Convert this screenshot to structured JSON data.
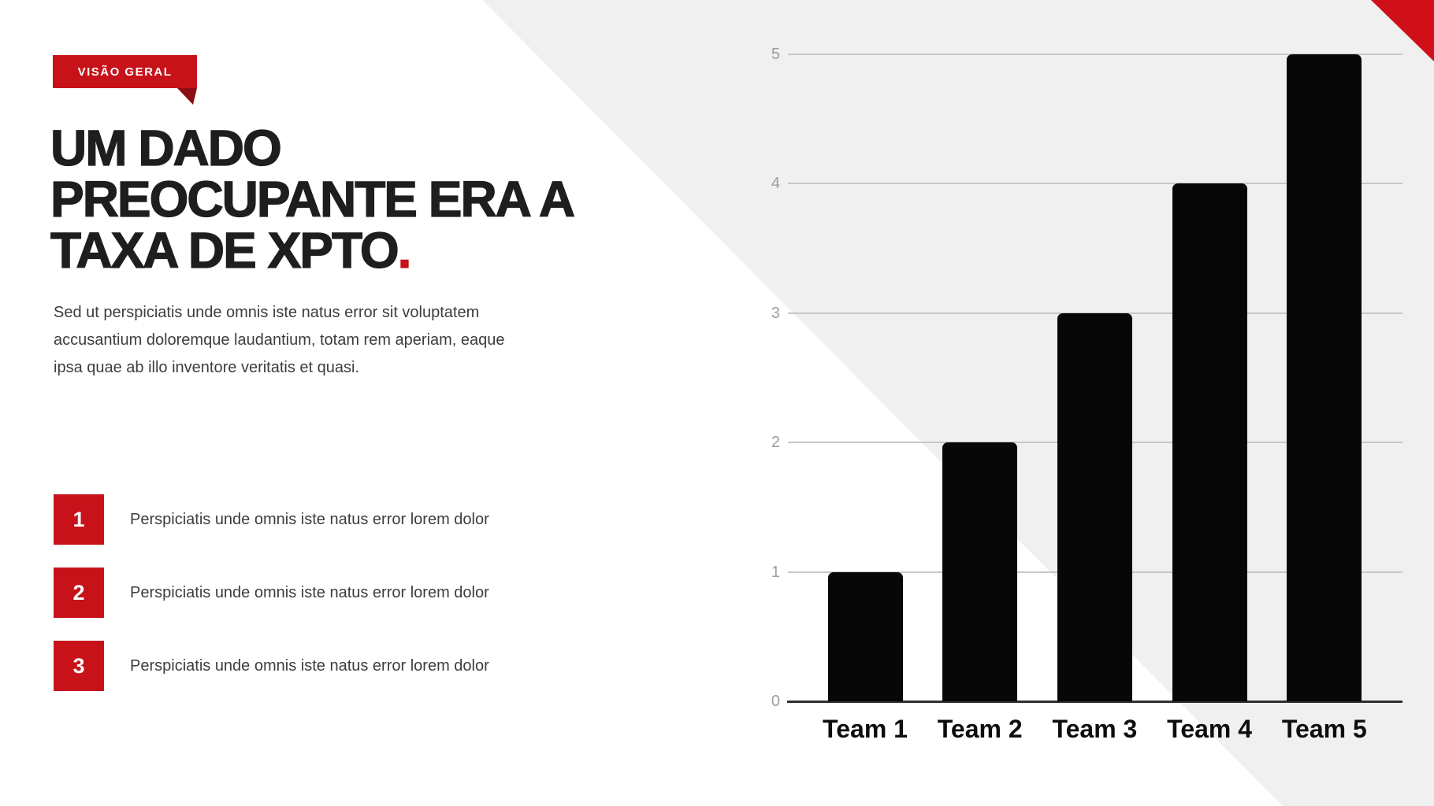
{
  "slide": {
    "kicker": "VISÃO GERAL",
    "title_lines": [
      "UM DADO",
      "PREOCUPANTE ERA A",
      "TAXA DE XPTO"
    ],
    "title_period": ".",
    "intro_lines": [
      "Sed ut perspiciatis unde omnis iste natus error sit voluptatem",
      "accusantium doloremque laudantium, totam rem aperiam, eaque",
      "ipsa quae ab illo inventore veritatis et quasi."
    ],
    "numbered_items": [
      {
        "number": "1",
        "text": "Perspiciatis unde omnis iste natus error lorem dolor"
      },
      {
        "number": "2",
        "text": "Perspiciatis unde omnis iste natus error lorem dolor"
      },
      {
        "number": "3",
        "text": "Perspiciatis unde omnis iste natus error lorem dolor"
      }
    ],
    "colors": {
      "accent": "#c8121a",
      "accent_dark": "#8b0e13",
      "corner_red": "#cf1018",
      "ink": "#1e1e1e",
      "body_text": "#3d3d3d",
      "panel_gray": "#f0f0f0",
      "bar_black": "#070707",
      "gridline": "#c7c7c7",
      "axis_line": "#2f2f2f",
      "tick_text": "#9e9e9e"
    }
  },
  "chart_data": {
    "type": "bar",
    "categories": [
      "Team 1",
      "Team 2",
      "Team 3",
      "Team 4",
      "Team 5"
    ],
    "values": [
      1,
      2,
      3,
      4,
      5
    ],
    "title": "",
    "xlabel": "",
    "ylabel": "",
    "ylim": [
      0,
      5
    ],
    "yticks": [
      0,
      1,
      2,
      3,
      4,
      5
    ],
    "grid": true,
    "legend": false,
    "bar_color": "#070707"
  }
}
